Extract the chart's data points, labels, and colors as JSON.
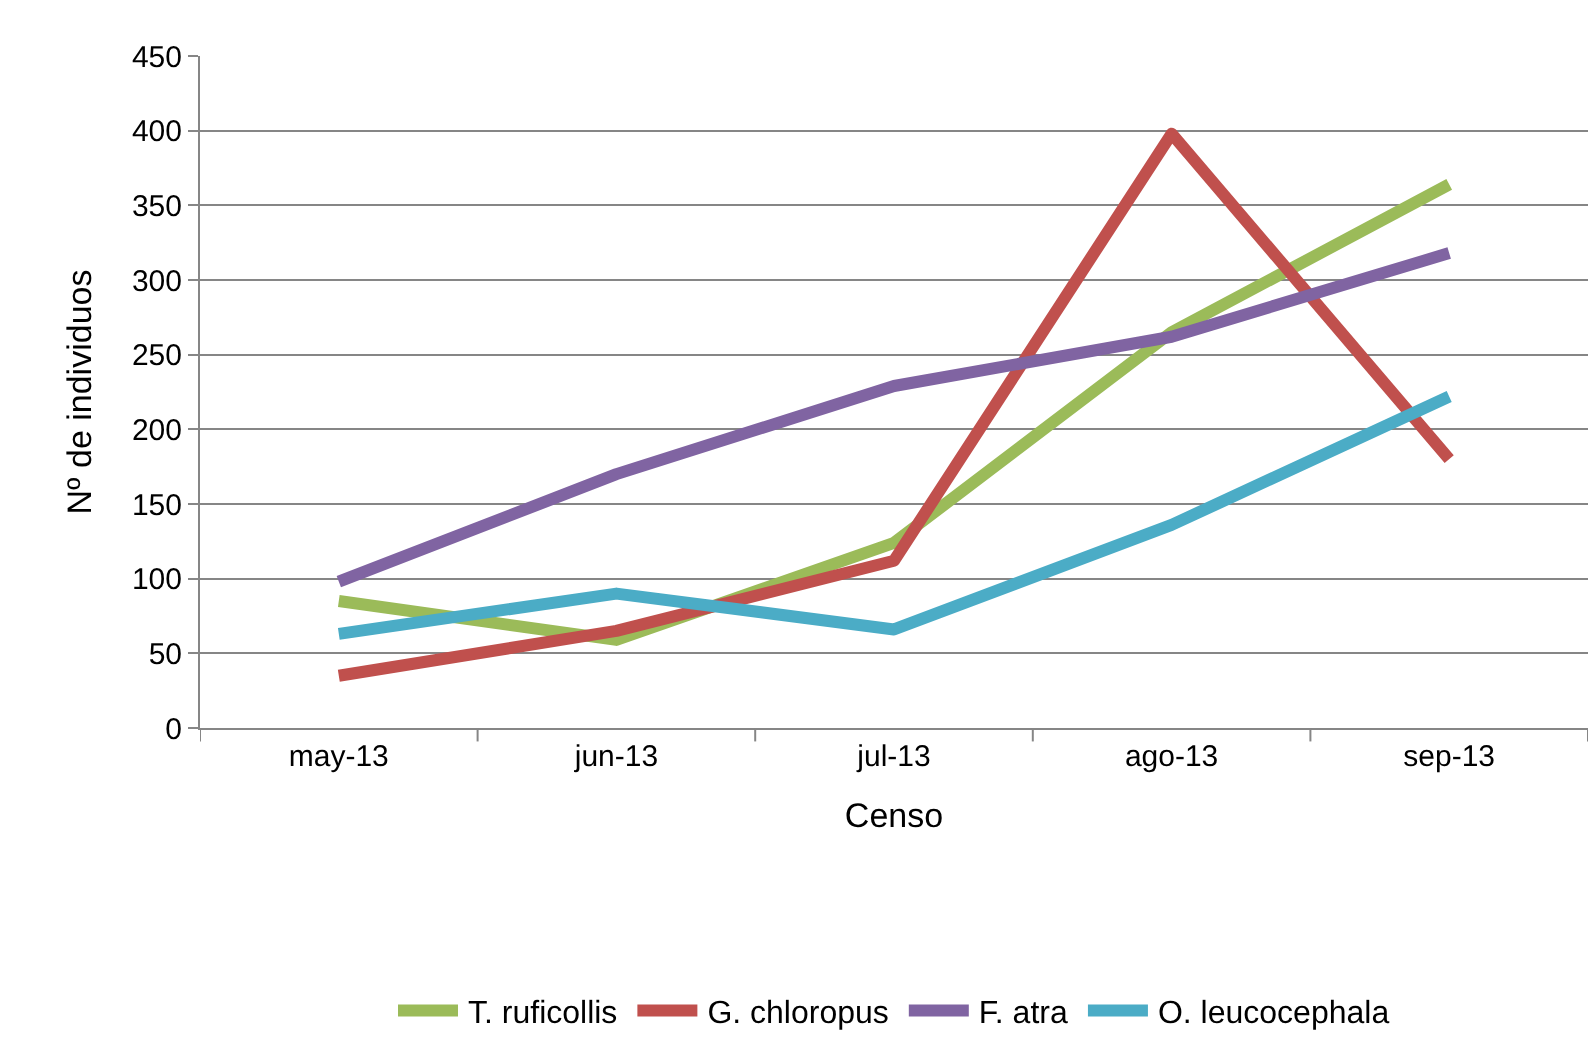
{
  "chart_data": {
    "type": "line",
    "xlabel": "Censo",
    "ylabel": "Nº de individuos",
    "categories": [
      "may-13",
      "jun-13",
      "jul-13",
      "ago-13",
      "sep-13"
    ],
    "series": [
      {
        "name": "T. ruficollis",
        "color": "#9bbb59",
        "values": [
          85,
          59,
          124,
          265,
          364
        ]
      },
      {
        "name": "G. chloropus",
        "color": "#c0504d",
        "values": [
          35,
          65,
          112,
          398,
          180
        ]
      },
      {
        "name": "F. atra",
        "color": "#8064a2",
        "values": [
          98,
          170,
          229,
          262,
          318
        ]
      },
      {
        "name": "O. leucocephala",
        "color": "#4bacc6",
        "values": [
          63,
          90,
          66,
          136,
          222
        ]
      }
    ],
    "ylim": [
      0,
      450
    ],
    "yticks": [
      0,
      50,
      100,
      150,
      200,
      250,
      300,
      350,
      400,
      450
    ],
    "grid": "y",
    "legend": "bottom",
    "marker": "none",
    "line_style": "solid"
  }
}
